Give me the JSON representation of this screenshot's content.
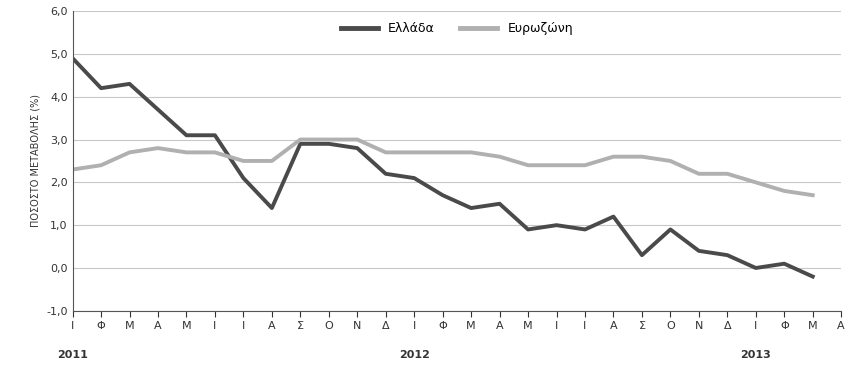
{
  "chart_data": {
    "type": "line",
    "y_label": "ΠΟΣΟΣΤΟ ΜΕΤΑΒΟΛΗΣ (%)",
    "categories": [
      "Ι",
      "Φ",
      "Μ",
      "Α",
      "Μ",
      "Ι",
      "Ι",
      "Α",
      "Σ",
      "Ο",
      "Ν",
      "Δ",
      "Ι",
      "Φ",
      "Μ",
      "Α",
      "Μ",
      "Ι",
      "Ι",
      "Α",
      "Σ",
      "Ο",
      "Ν",
      "Δ",
      "Ι",
      "Φ",
      "Μ",
      "Α"
    ],
    "years": [
      "2011",
      "2012",
      "2013"
    ],
    "series": [
      {
        "name": "Ελλάδα",
        "color": "#4a4a4a",
        "values": [
          4.9,
          4.2,
          4.3,
          3.7,
          3.1,
          3.1,
          2.1,
          1.4,
          2.9,
          2.9,
          2.8,
          2.2,
          2.1,
          1.7,
          1.4,
          1.5,
          0.9,
          1.0,
          0.9,
          1.2,
          0.3,
          0.9,
          0.4,
          0.3,
          0.0,
          0.1,
          -0.2,
          null
        ]
      },
      {
        "name": "Ευρωζώνη",
        "color": "#b0b0b0",
        "values": [
          2.3,
          2.4,
          2.7,
          2.8,
          2.7,
          2.7,
          2.5,
          2.5,
          3.0,
          3.0,
          3.0,
          2.7,
          2.7,
          2.7,
          2.7,
          2.6,
          2.4,
          2.4,
          2.4,
          2.6,
          2.6,
          2.5,
          2.2,
          2.2,
          2.0,
          1.8,
          1.7,
          null
        ]
      }
    ],
    "ylim": [
      -1.0,
      6.0
    ],
    "yticks": [
      {
        "value": -1.0,
        "label": "-1,0"
      },
      {
        "value": 0.0,
        "label": "0,0"
      },
      {
        "value": 1.0,
        "label": "1,0"
      },
      {
        "value": 2.0,
        "label": "2,0"
      },
      {
        "value": 3.0,
        "label": "3,0"
      },
      {
        "value": 4.0,
        "label": "4,0"
      },
      {
        "value": 5.0,
        "label": "5,0"
      },
      {
        "value": 6.0,
        "label": "6,0"
      }
    ],
    "grid": true,
    "legend": "upper center"
  }
}
